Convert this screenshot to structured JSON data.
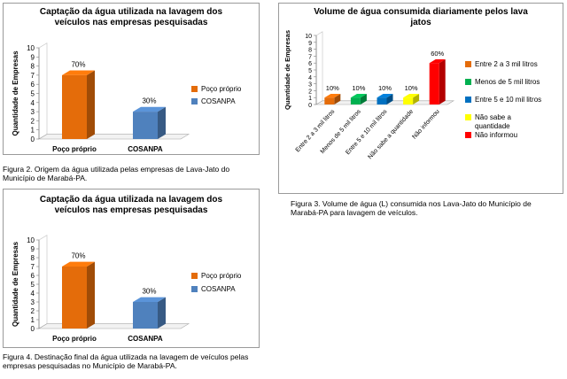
{
  "chart_data": [
    {
      "type": "bar",
      "title_line1": "Captação da água utilizada na lavagem dos",
      "title_line2": "veículos nas empresas pesquisadas",
      "ylabel": "Quantidade de Empresas",
      "ylim": [
        0,
        10
      ],
      "yticks": [
        "0",
        "1",
        "2",
        "3",
        "4",
        "5",
        "6",
        "7",
        "8",
        "9",
        "10"
      ],
      "categories": [
        "Poço próprio",
        "COSANPA"
      ],
      "values": [
        7,
        3
      ],
      "data_labels": [
        "70%",
        "30%"
      ],
      "legend": [
        "Poço próprio",
        "COSANPA"
      ],
      "colors": [
        "#E46C0A",
        "#4F81BD"
      ],
      "legend_position": "right",
      "caption": "Figura 2. Origem da água utilizada pelas empresas de Lava-Jato do Município de Marabá-PA."
    },
    {
      "type": "bar",
      "title_line1": "Volume de água consumida diariamente pelos lava",
      "title_line2": "jatos",
      "ylabel": "Quantidade de Empresas",
      "ylim": [
        0,
        10
      ],
      "yticks": [
        "0",
        "1",
        "2",
        "3",
        "4",
        "5",
        "6",
        "7",
        "8",
        "9",
        "10"
      ],
      "categories": [
        "Entre 2 a 3 mil litros",
        "Menos de 5 mil litros",
        "Entre 5 e 10 mil litros",
        "Não sabe a quantidade",
        "Não informou"
      ],
      "values": [
        1,
        1,
        1,
        1,
        6
      ],
      "data_labels": [
        "10%",
        "10%",
        "10%",
        "10%",
        "60%"
      ],
      "legend": [
        "Entre 2 a 3 mil litros",
        "Menos de 5 mil litros",
        "Entre 5 e 10 mil litros",
        "Não sabe a quantidade",
        "Não informou"
      ],
      "colors": [
        "#E46C0A",
        "#00B050",
        "#0070C0",
        "#FFFF00",
        "#FF0000"
      ],
      "legend_position": "right",
      "caption": "Figura 3. Volume de água (L) consumida nos Lava-Jato do Município de Marabá-PA para lavagem de veículos."
    },
    {
      "type": "bar",
      "title_line1": "Captação da água utilizada na lavagem dos",
      "title_line2": "veículos nas empresas pesquisadas",
      "ylabel": "Quantidade de Empresas",
      "ylim": [
        0,
        10
      ],
      "yticks": [
        "0",
        "1",
        "2",
        "3",
        "4",
        "5",
        "6",
        "7",
        "8",
        "9",
        "10"
      ],
      "categories": [
        "Poço próprio",
        "COSANPA"
      ],
      "values": [
        7,
        3
      ],
      "data_labels": [
        "70%",
        "30%"
      ],
      "legend": [
        "Poço próprio",
        "COSANPA"
      ],
      "colors": [
        "#E46C0A",
        "#4F81BD"
      ],
      "legend_position": "right",
      "caption": "Figura 4. Destinação final da água utilizada na lavagem de veículos pelas empresas pesquisadas no Município de Marabá-PA."
    }
  ]
}
